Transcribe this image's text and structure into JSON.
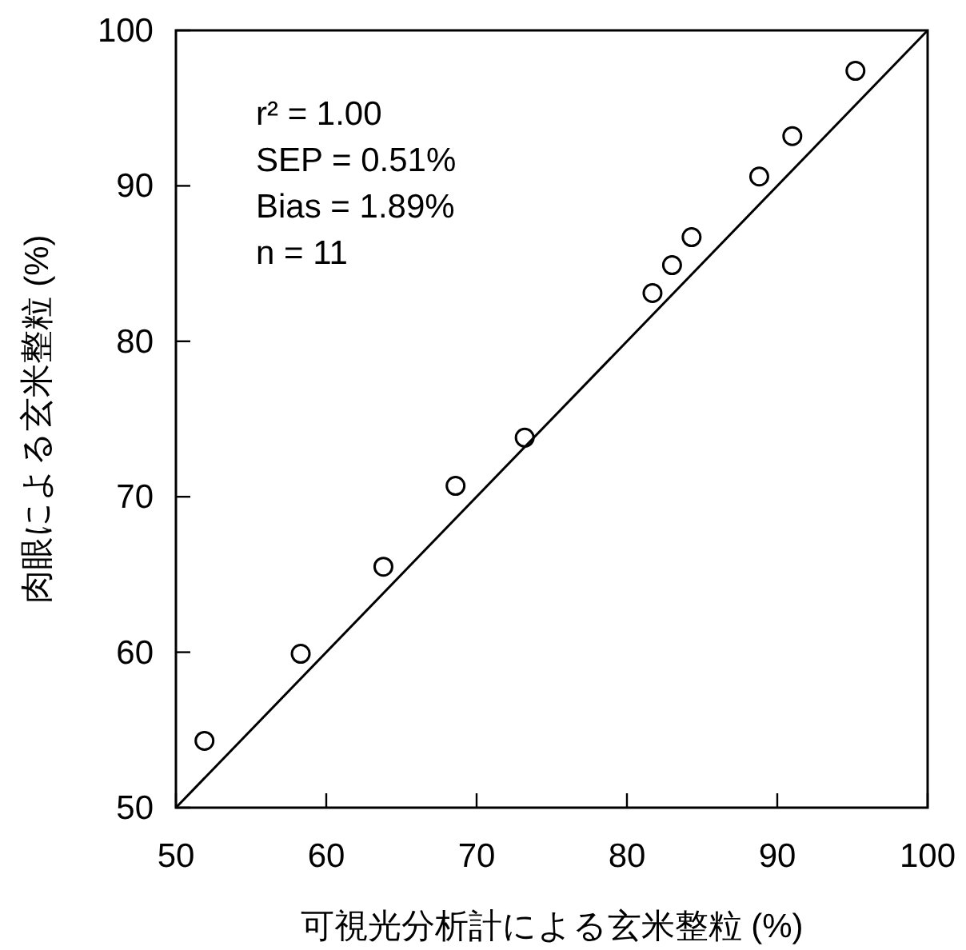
{
  "chart_data": {
    "type": "scatter",
    "xlabel": "可視光分析計による玄米整粒 (%)",
    "ylabel": "肉眼による玄米整粒 (%)",
    "xlim": [
      50,
      100
    ],
    "ylim": [
      50,
      100
    ],
    "xticks": [
      50,
      60,
      70,
      80,
      90,
      100
    ],
    "yticks": [
      50,
      60,
      70,
      80,
      90,
      100
    ],
    "grid": false,
    "marker": "circle",
    "annotations": [
      "r² = 1.00",
      "SEP = 0.51%",
      "Bias = 1.89%",
      "n = 11"
    ],
    "series": [
      {
        "color": "#000000",
        "x": [
          51.9,
          58.3,
          63.8,
          68.6,
          73.2,
          81.7,
          83.0,
          84.3,
          88.8,
          91.0,
          95.2
        ],
        "values": [
          54.3,
          59.9,
          65.5,
          70.7,
          73.8,
          83.1,
          84.9,
          86.7,
          90.6,
          93.2,
          97.4
        ]
      },
      {
        "type": "line",
        "color": "#000000",
        "marker": "none",
        "line_style": "solid",
        "x": [
          50,
          100
        ],
        "values": [
          50,
          100
        ]
      }
    ]
  }
}
